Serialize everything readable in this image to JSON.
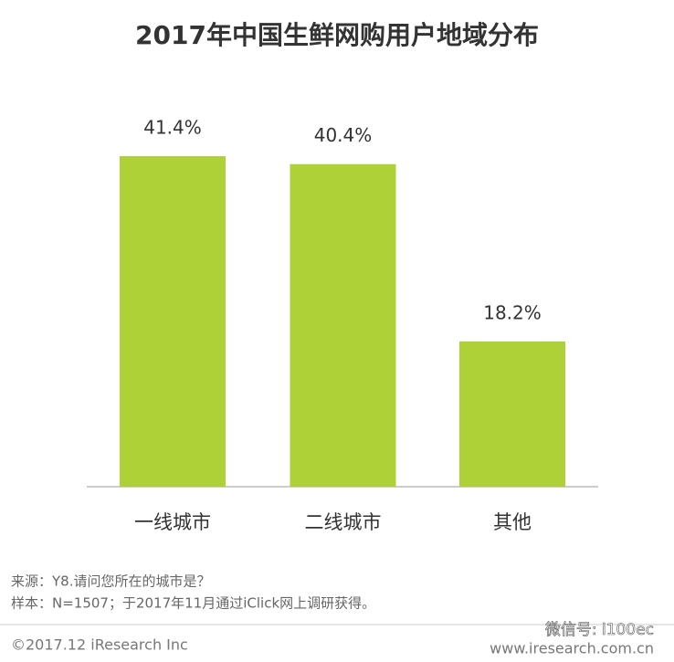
{
  "chart_data": {
    "type": "bar",
    "title": "2017年中国生鲜网购用户地域分布",
    "categories": [
      "一线城市",
      "二线城市",
      "其他"
    ],
    "values": [
      41.4,
      40.4,
      18.2
    ],
    "value_labels": [
      "41.4%",
      "40.4%",
      "18.2%"
    ],
    "color": "#add136",
    "source": "来源：Y8.请问您所在的城市是？",
    "sample": "样本：N=1507；于2017年11月通过iClick网上调研获得。",
    "copyright": "©2017.12 iResearch Inc",
    "website": "www.iresearch.com.cn",
    "watermark": "微信号: i100ec"
  }
}
